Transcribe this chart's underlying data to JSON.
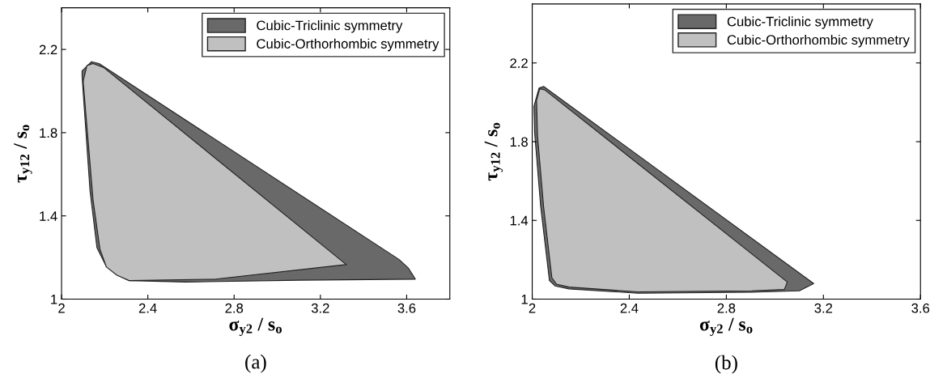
{
  "chart_data": [
    {
      "type": "area",
      "xlabel": "σ$_{y2}$ / s$_{o}$",
      "ylabel": "τ$_{y12}$ / s$_{o}$",
      "xlim": [
        2,
        3.8
      ],
      "ylim": [
        1,
        2.4
      ],
      "xticks": [
        2,
        2.4,
        2.8,
        3.2,
        3.6
      ],
      "yticks": [
        1,
        1.4,
        1.8,
        2.2
      ],
      "legend": "top right",
      "grid": false,
      "annotations": [
        "(a)"
      ],
      "series": [
        {
          "name": "Cubic-Triclinic symmetry",
          "color": "#696969",
          "x": [
            2.095,
            2.139,
            2.174,
            3.564,
            3.608,
            3.64,
            3.105,
            2.577,
            2.313,
            2.25,
            2.208,
            2.164,
            2.132,
            2.095
          ],
          "values": [
            2.097,
            2.141,
            2.132,
            1.191,
            1.149,
            1.096,
            1.091,
            1.082,
            1.089,
            1.122,
            1.156,
            1.247,
            1.52,
            2.072
          ]
        },
        {
          "name": "Cubic-Orthorhombic symmetry",
          "color": "#c0c0c0",
          "x": [
            2.101,
            2.118,
            2.146,
            2.195,
            3.32,
            3.258,
            2.716,
            2.313,
            2.257,
            2.208,
            2.178,
            2.146,
            2.101
          ],
          "values": [
            2.051,
            2.123,
            2.132,
            2.113,
            1.166,
            1.159,
            1.096,
            1.089,
            1.115,
            1.154,
            1.24,
            1.478,
            2.037
          ]
        }
      ]
    },
    {
      "type": "area",
      "xlabel": "σ$_{y2}$ / s$_{o}$",
      "ylabel": "τ$_{y12}$ / s$_{o}$",
      "xlim": [
        2,
        3.6
      ],
      "ylim": [
        1,
        2.5
      ],
      "xticks": [
        2,
        2.4,
        2.8,
        3.2,
        3.6
      ],
      "yticks": [
        1,
        1.4,
        1.8,
        2.2
      ],
      "legend": "top right",
      "grid": false,
      "annotations": [
        "(b)"
      ],
      "series": [
        {
          "name": "Cubic-Triclinic symmetry",
          "color": "#696969",
          "x": [
            2.028,
            2.047,
            3.16,
            3.101,
            2.904,
            2.435,
            2.152,
            2.094,
            2.071,
            2.035,
            2.01,
            2.007
          ],
          "values": [
            2.072,
            2.081,
            1.079,
            1.042,
            1.035,
            1.03,
            1.052,
            1.067,
            1.094,
            1.469,
            1.844,
            1.979
          ]
        },
        {
          "name": "Cubic-Orthorhombic symmetry",
          "color": "#c0c0c0",
          "x": [
            2.018,
            2.031,
            2.053,
            3.051,
            3.039,
            2.904,
            2.435,
            2.152,
            2.1,
            2.081,
            2.047,
            2.022
          ],
          "values": [
            2.009,
            2.069,
            2.062,
            1.087,
            1.049,
            1.042,
            1.037,
            1.061,
            1.076,
            1.109,
            1.469,
            1.829
          ]
        }
      ]
    }
  ]
}
